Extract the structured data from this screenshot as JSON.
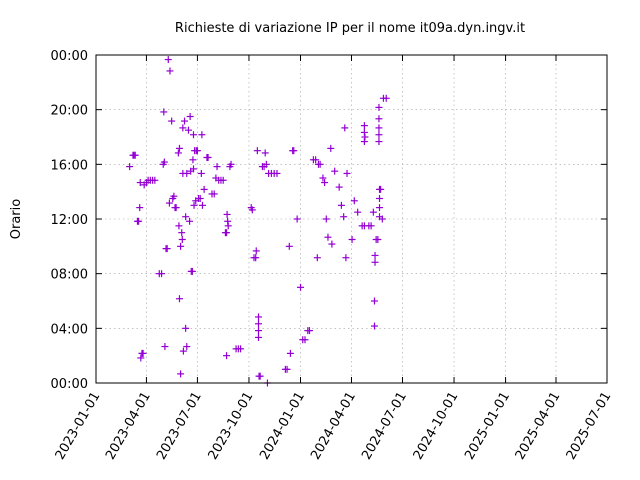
{
  "chart_data": {
    "type": "scatter",
    "title": "Richieste di variazione IP per il nome it09a.dyn.ingv.it",
    "xlabel": "",
    "ylabel": "Orario",
    "x_type": "date",
    "xlim": [
      "2023-01-01",
      "2025-07-01"
    ],
    "ylim": [
      "00:00",
      "24:00"
    ],
    "y_ticks": [
      "00:00",
      "04:00",
      "08:00",
      "12:00",
      "16:00",
      "20:00",
      "00:00"
    ],
    "x_ticks": [
      "2023-01-01",
      "2023-04-01",
      "2023-07-01",
      "2023-10-01",
      "2024-01-01",
      "2024-04-01",
      "2024-07-01",
      "2024-10-01",
      "2025-01-01",
      "2025-04-01",
      "2025-07-01"
    ],
    "grid": true,
    "marker": "plus",
    "color": "#9400d3",
    "points": [
      {
        "x": "2023-03-02",
        "y": "15:50"
      },
      {
        "x": "2023-03-08",
        "y": "16:40"
      },
      {
        "x": "2023-03-10",
        "y": "16:40"
      },
      {
        "x": "2023-03-12",
        "y": "16:40"
      },
      {
        "x": "2023-03-16",
        "y": "11:50"
      },
      {
        "x": "2023-03-18",
        "y": "11:50"
      },
      {
        "x": "2023-03-20",
        "y": "12:50"
      },
      {
        "x": "2023-03-21",
        "y": "14:40"
      },
      {
        "x": "2023-03-22",
        "y": "01:50"
      },
      {
        "x": "2023-03-24",
        "y": "02:10"
      },
      {
        "x": "2023-03-26",
        "y": "02:10"
      },
      {
        "x": "2023-03-28",
        "y": "14:30"
      },
      {
        "x": "2023-04-01",
        "y": "14:40"
      },
      {
        "x": "2023-04-04",
        "y": "14:50"
      },
      {
        "x": "2023-04-08",
        "y": "14:50"
      },
      {
        "x": "2023-04-12",
        "y": "14:50"
      },
      {
        "x": "2023-04-16",
        "y": "14:50"
      },
      {
        "x": "2023-04-24",
        "y": "08:00"
      },
      {
        "x": "2023-04-28",
        "y": "08:00"
      },
      {
        "x": "2023-05-01",
        "y": "16:00"
      },
      {
        "x": "2023-05-03",
        "y": "16:10"
      },
      {
        "x": "2023-05-02",
        "y": "19:50"
      },
      {
        "x": "2023-05-04",
        "y": "02:40"
      },
      {
        "x": "2023-05-06",
        "y": "09:50"
      },
      {
        "x": "2023-05-08",
        "y": "09:50"
      },
      {
        "x": "2023-05-10",
        "y": "23:40"
      },
      {
        "x": "2023-05-13",
        "y": "22:50"
      },
      {
        "x": "2023-05-12",
        "y": "13:10"
      },
      {
        "x": "2023-05-16",
        "y": "19:10"
      },
      {
        "x": "2023-05-18",
        "y": "13:30"
      },
      {
        "x": "2023-05-20",
        "y": "13:40"
      },
      {
        "x": "2023-05-22",
        "y": "12:50"
      },
      {
        "x": "2023-05-24",
        "y": "12:50"
      },
      {
        "x": "2023-05-28",
        "y": "16:50"
      },
      {
        "x": "2023-05-30",
        "y": "17:10"
      },
      {
        "x": "2023-05-29",
        "y": "11:30"
      },
      {
        "x": "2023-05-30",
        "y": "06:10"
      },
      {
        "x": "2023-06-01",
        "y": "10:00"
      },
      {
        "x": "2023-06-01",
        "y": "00:40"
      },
      {
        "x": "2023-06-03",
        "y": "11:00"
      },
      {
        "x": "2023-06-04",
        "y": "10:30"
      },
      {
        "x": "2023-06-05",
        "y": "15:20"
      },
      {
        "x": "2023-06-05",
        "y": "18:40"
      },
      {
        "x": "2023-06-06",
        "y": "02:20"
      },
      {
        "x": "2023-06-08",
        "y": "19:10"
      },
      {
        "x": "2023-06-10",
        "y": "04:00"
      },
      {
        "x": "2023-06-10",
        "y": "12:10"
      },
      {
        "x": "2023-06-12",
        "y": "02:40"
      },
      {
        "x": "2023-06-12",
        "y": "15:20"
      },
      {
        "x": "2023-06-15",
        "y": "18:30"
      },
      {
        "x": "2023-06-17",
        "y": "11:50"
      },
      {
        "x": "2023-06-18",
        "y": "19:30"
      },
      {
        "x": "2023-06-19",
        "y": "15:30"
      },
      {
        "x": "2023-06-20",
        "y": "08:10"
      },
      {
        "x": "2023-06-22",
        "y": "08:10"
      },
      {
        "x": "2023-06-23",
        "y": "16:20"
      },
      {
        "x": "2023-06-24",
        "y": "18:10"
      },
      {
        "x": "2023-06-24",
        "y": "15:40"
      },
      {
        "x": "2023-06-26",
        "y": "17:00"
      },
      {
        "x": "2023-06-29",
        "y": "17:00"
      },
      {
        "x": "2023-07-01",
        "y": "17:00"
      },
      {
        "x": "2023-06-25",
        "y": "13:00"
      },
      {
        "x": "2023-06-28",
        "y": "13:20"
      },
      {
        "x": "2023-07-03",
        "y": "13:30"
      },
      {
        "x": "2023-07-06",
        "y": "13:30"
      },
      {
        "x": "2023-07-08",
        "y": "15:20"
      },
      {
        "x": "2023-07-09",
        "y": "18:10"
      },
      {
        "x": "2023-07-10",
        "y": "13:00"
      },
      {
        "x": "2023-07-13",
        "y": "14:10"
      },
      {
        "x": "2023-07-18",
        "y": "16:30"
      },
      {
        "x": "2023-07-20",
        "y": "16:30"
      },
      {
        "x": "2023-07-27",
        "y": "13:50"
      },
      {
        "x": "2023-07-31",
        "y": "13:50"
      },
      {
        "x": "2023-08-05",
        "y": "15:50"
      },
      {
        "x": "2023-08-03",
        "y": "15:00"
      },
      {
        "x": "2023-08-08",
        "y": "14:50"
      },
      {
        "x": "2023-08-12",
        "y": "14:50"
      },
      {
        "x": "2023-08-16",
        "y": "14:50"
      },
      {
        "x": "2023-08-20",
        "y": "11:00"
      },
      {
        "x": "2023-08-22",
        "y": "11:00"
      },
      {
        "x": "2023-08-23",
        "y": "12:20"
      },
      {
        "x": "2023-08-24",
        "y": "11:50"
      },
      {
        "x": "2023-08-25",
        "y": "11:30"
      },
      {
        "x": "2023-08-22",
        "y": "02:00"
      },
      {
        "x": "2023-08-28",
        "y": "15:50"
      },
      {
        "x": "2023-08-30",
        "y": "16:00"
      },
      {
        "x": "2023-09-08",
        "y": "02:30"
      },
      {
        "x": "2023-09-12",
        "y": "02:30"
      },
      {
        "x": "2023-09-16",
        "y": "02:30"
      },
      {
        "x": "2023-10-05",
        "y": "12:50"
      },
      {
        "x": "2023-10-07",
        "y": "12:40"
      },
      {
        "x": "2023-10-10",
        "y": "09:10"
      },
      {
        "x": "2023-10-13",
        "y": "09:10"
      },
      {
        "x": "2023-10-14",
        "y": "09:40"
      },
      {
        "x": "2023-10-16",
        "y": "17:00"
      },
      {
        "x": "2023-10-18",
        "y": "04:50"
      },
      {
        "x": "2023-10-18",
        "y": "04:20"
      },
      {
        "x": "2023-10-18",
        "y": "03:50"
      },
      {
        "x": "2023-10-18",
        "y": "03:20"
      },
      {
        "x": "2023-10-19",
        "y": "00:30"
      },
      {
        "x": "2023-10-21",
        "y": "00:30"
      },
      {
        "x": "2023-10-25",
        "y": "15:50"
      },
      {
        "x": "2023-10-28",
        "y": "15:50"
      },
      {
        "x": "2023-10-30",
        "y": "16:50"
      },
      {
        "x": "2023-11-01",
        "y": "16:00"
      },
      {
        "x": "2023-11-03",
        "y": "00:00"
      },
      {
        "x": "2023-11-05",
        "y": "15:20"
      },
      {
        "x": "2023-11-10",
        "y": "15:20"
      },
      {
        "x": "2023-11-15",
        "y": "15:20"
      },
      {
        "x": "2023-11-20",
        "y": "15:20"
      },
      {
        "x": "2023-12-05",
        "y": "01:00"
      },
      {
        "x": "2023-12-08",
        "y": "01:00"
      },
      {
        "x": "2023-12-12",
        "y": "10:00"
      },
      {
        "x": "2023-12-14",
        "y": "02:10"
      },
      {
        "x": "2023-12-18",
        "y": "17:00"
      },
      {
        "x": "2023-12-20",
        "y": "17:00"
      },
      {
        "x": "2023-12-26",
        "y": "12:00"
      },
      {
        "x": "2024-01-01",
        "y": "07:00"
      },
      {
        "x": "2024-01-05",
        "y": "03:10"
      },
      {
        "x": "2024-01-09",
        "y": "03:10"
      },
      {
        "x": "2024-01-14",
        "y": "03:50"
      },
      {
        "x": "2024-01-17",
        "y": "03:50"
      },
      {
        "x": "2024-01-24",
        "y": "16:20"
      },
      {
        "x": "2024-01-28",
        "y": "16:20"
      },
      {
        "x": "2024-02-02",
        "y": "16:00"
      },
      {
        "x": "2024-02-05",
        "y": "16:00"
      },
      {
        "x": "2024-01-31",
        "y": "09:10"
      },
      {
        "x": "2024-02-10",
        "y": "15:00"
      },
      {
        "x": "2024-02-13",
        "y": "14:40"
      },
      {
        "x": "2024-02-16",
        "y": "12:00"
      },
      {
        "x": "2024-02-19",
        "y": "10:40"
      },
      {
        "x": "2024-02-24",
        "y": "17:10"
      },
      {
        "x": "2024-02-26",
        "y": "10:10"
      },
      {
        "x": "2024-03-02",
        "y": "15:30"
      },
      {
        "x": "2024-03-10",
        "y": "14:20"
      },
      {
        "x": "2024-03-14",
        "y": "13:00"
      },
      {
        "x": "2024-03-18",
        "y": "12:10"
      },
      {
        "x": "2024-03-22",
        "y": "09:10"
      },
      {
        "x": "2024-03-20",
        "y": "18:40"
      },
      {
        "x": "2024-03-24",
        "y": "15:20"
      },
      {
        "x": "2024-04-02",
        "y": "10:30"
      },
      {
        "x": "2024-04-06",
        "y": "13:20"
      },
      {
        "x": "2024-04-12",
        "y": "12:30"
      },
      {
        "x": "2024-04-20",
        "y": "11:30"
      },
      {
        "x": "2024-04-24",
        "y": "11:30"
      },
      {
        "x": "2024-05-02",
        "y": "11:30"
      },
      {
        "x": "2024-05-06",
        "y": "11:30"
      },
      {
        "x": "2024-04-24",
        "y": "18:50"
      },
      {
        "x": "2024-04-24",
        "y": "18:20"
      },
      {
        "x": "2024-04-24",
        "y": "17:40"
      },
      {
        "x": "2024-04-25",
        "y": "18:00"
      },
      {
        "x": "2024-05-10",
        "y": "12:30"
      },
      {
        "x": "2024-05-12",
        "y": "06:00"
      },
      {
        "x": "2024-05-12",
        "y": "04:10"
      },
      {
        "x": "2024-05-13",
        "y": "09:20"
      },
      {
        "x": "2024-05-13",
        "y": "08:50"
      },
      {
        "x": "2024-05-15",
        "y": "10:30"
      },
      {
        "x": "2024-05-18",
        "y": "10:30"
      },
      {
        "x": "2024-05-20",
        "y": "20:10"
      },
      {
        "x": "2024-05-20",
        "y": "19:20"
      },
      {
        "x": "2024-05-20",
        "y": "18:40"
      },
      {
        "x": "2024-05-20",
        "y": "18:10"
      },
      {
        "x": "2024-05-20",
        "y": "17:40"
      },
      {
        "x": "2024-05-21",
        "y": "14:10"
      },
      {
        "x": "2024-05-21",
        "y": "13:30"
      },
      {
        "x": "2024-05-21",
        "y": "12:50"
      },
      {
        "x": "2024-05-21",
        "y": "12:10"
      },
      {
        "x": "2024-05-23",
        "y": "14:10"
      },
      {
        "x": "2024-05-26",
        "y": "12:00"
      },
      {
        "x": "2024-05-28",
        "y": "20:50"
      },
      {
        "x": "2024-06-02",
        "y": "20:50"
      }
    ]
  }
}
